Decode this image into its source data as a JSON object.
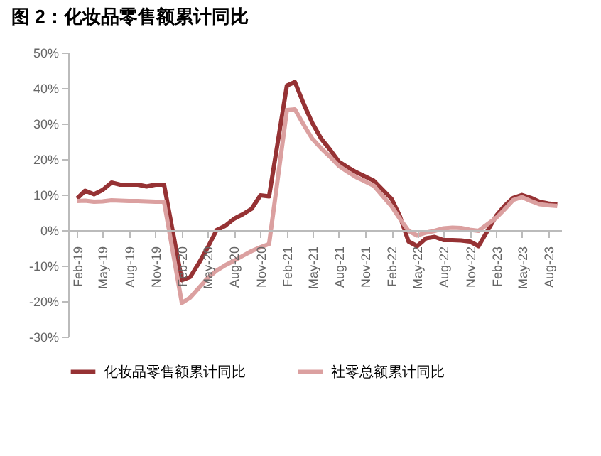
{
  "chart_data": {
    "type": "line",
    "title": "图 2：化妆品零售额累计同比",
    "x": [
      "2019-02",
      "2019-03",
      "2019-04",
      "2019-05",
      "2019-06",
      "2019-07",
      "2019-08",
      "2019-09",
      "2019-10",
      "2019-11",
      "2019-12",
      "2020-02",
      "2020-03",
      "2020-04",
      "2020-05",
      "2020-06",
      "2020-07",
      "2020-08",
      "2020-09",
      "2020-10",
      "2020-11",
      "2020-12",
      "2021-02",
      "2021-03",
      "2021-04",
      "2021-05",
      "2021-06",
      "2021-07",
      "2021-08",
      "2021-09",
      "2021-10",
      "2021-11",
      "2021-12",
      "2022-02",
      "2022-03",
      "2022-04",
      "2022-05",
      "2022-06",
      "2022-07",
      "2022-08",
      "2022-09",
      "2022-10",
      "2022-11",
      "2022-12",
      "2023-02",
      "2023-03",
      "2023-04",
      "2023-05",
      "2023-06",
      "2023-07",
      "2023-08",
      "2023-09"
    ],
    "series": [
      {
        "name": "化妆品零售额累计同比",
        "color": "#963234",
        "values": [
          8.9,
          11.1,
          10.1,
          11.3,
          13.4,
          12.8,
          12.8,
          12.8,
          12.3,
          12.8,
          12.8,
          -14.1,
          -13.2,
          -9.2,
          -4.9,
          0.0,
          1.2,
          3.2,
          4.5,
          6.0,
          9.8,
          9.5,
          40.7,
          41.7,
          35.5,
          30.1,
          25.7,
          22.7,
          19.3,
          17.7,
          16.3,
          15.1,
          13.9,
          8.8,
          4.1,
          -3.2,
          -4.5,
          -2.3,
          -1.9,
          -2.8,
          -2.8,
          -2.9,
          -3.2,
          -4.5,
          4.1,
          6.8,
          9.1,
          9.9,
          9.1,
          8.0,
          7.5,
          7.2
        ]
      },
      {
        "name": "社零总额累计同比",
        "color": "#dba0a0",
        "values": [
          8.2,
          8.3,
          8.0,
          8.1,
          8.4,
          8.3,
          8.2,
          8.2,
          8.1,
          8.0,
          8.0,
          -20.5,
          -19.0,
          -16.2,
          -13.5,
          -11.4,
          -9.9,
          -8.6,
          -7.2,
          -5.9,
          -4.8,
          -3.9,
          33.8,
          34.0,
          29.6,
          25.7,
          23.0,
          20.7,
          18.1,
          16.4,
          14.9,
          13.7,
          12.5,
          6.7,
          3.3,
          -0.2,
          -1.5,
          -0.7,
          -0.2,
          0.5,
          0.7,
          0.6,
          0.1,
          -0.2,
          3.5,
          5.8,
          8.5,
          9.3,
          8.2,
          7.3,
          7.0,
          6.8
        ]
      }
    ],
    "xlim": [
      "2019-01-01",
      "2023-09-15"
    ],
    "xticks": [
      {
        "value": "2019-02",
        "label": "Feb-19"
      },
      {
        "value": "2019-05",
        "label": "May-19"
      },
      {
        "value": "2019-08",
        "label": "Aug-19"
      },
      {
        "value": "2019-11",
        "label": "Nov-19"
      },
      {
        "value": "2020-02",
        "label": "Feb-20"
      },
      {
        "value": "2020-05",
        "label": "May-20"
      },
      {
        "value": "2020-08",
        "label": "Aug-20"
      },
      {
        "value": "2020-11",
        "label": "Nov-20"
      },
      {
        "value": "2021-02",
        "label": "Feb-21"
      },
      {
        "value": "2021-05",
        "label": "May-21"
      },
      {
        "value": "2021-08",
        "label": "Aug-21"
      },
      {
        "value": "2021-11",
        "label": "Nov-21"
      },
      {
        "value": "2022-02",
        "label": "Feb-22"
      },
      {
        "value": "2022-05",
        "label": "May-22"
      },
      {
        "value": "2022-08",
        "label": "Aug-22"
      },
      {
        "value": "2022-11",
        "label": "Nov-22"
      },
      {
        "value": "2023-02",
        "label": "Feb-23"
      },
      {
        "value": "2023-05",
        "label": "May-23"
      },
      {
        "value": "2023-08",
        "label": "Aug-23"
      }
    ],
    "ylim": [
      -30,
      50
    ],
    "yticks": [
      {
        "value": -30,
        "label": "-30%"
      },
      {
        "value": -20,
        "label": "-20%"
      },
      {
        "value": -10,
        "label": "-10%"
      },
      {
        "value": 0,
        "label": "0%"
      },
      {
        "value": 10,
        "label": "10%"
      },
      {
        "value": 20,
        "label": "20%"
      },
      {
        "value": 30,
        "label": "30%"
      },
      {
        "value": 40,
        "label": "40%"
      },
      {
        "value": 50,
        "label": "50%"
      }
    ],
    "grid": false,
    "legend": "bottom",
    "marker": "none",
    "line_style": "solid"
  }
}
